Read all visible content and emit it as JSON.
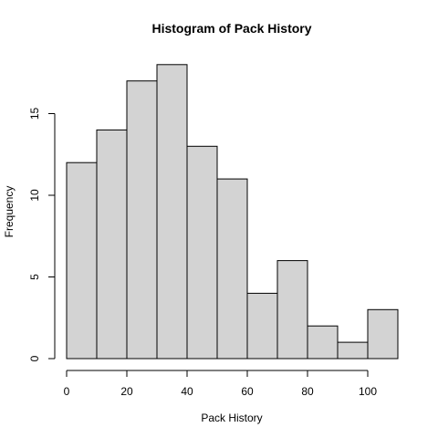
{
  "chart_data": {
    "type": "bar",
    "title": "Histogram of  Pack History",
    "xlabel": "Pack History",
    "ylabel": "Frequency",
    "bins": [
      {
        "start": 0,
        "end": 10,
        "count": 12
      },
      {
        "start": 10,
        "end": 20,
        "count": 14
      },
      {
        "start": 20,
        "end": 30,
        "count": 17
      },
      {
        "start": 30,
        "end": 40,
        "count": 18
      },
      {
        "start": 40,
        "end": 50,
        "count": 13
      },
      {
        "start": 50,
        "end": 60,
        "count": 11
      },
      {
        "start": 60,
        "end": 70,
        "count": 4
      },
      {
        "start": 70,
        "end": 80,
        "count": 6
      },
      {
        "start": 80,
        "end": 90,
        "count": 2
      },
      {
        "start": 90,
        "end": 100,
        "count": 1
      },
      {
        "start": 100,
        "end": 110,
        "count": 3
      }
    ],
    "xlim": [
      0,
      110
    ],
    "ylim": [
      0,
      18
    ],
    "xticks": [
      0,
      20,
      40,
      60,
      80,
      100
    ],
    "yticks": [
      0,
      5,
      10,
      15
    ],
    "bar_color": "#d3d3d3",
    "grid": false
  }
}
